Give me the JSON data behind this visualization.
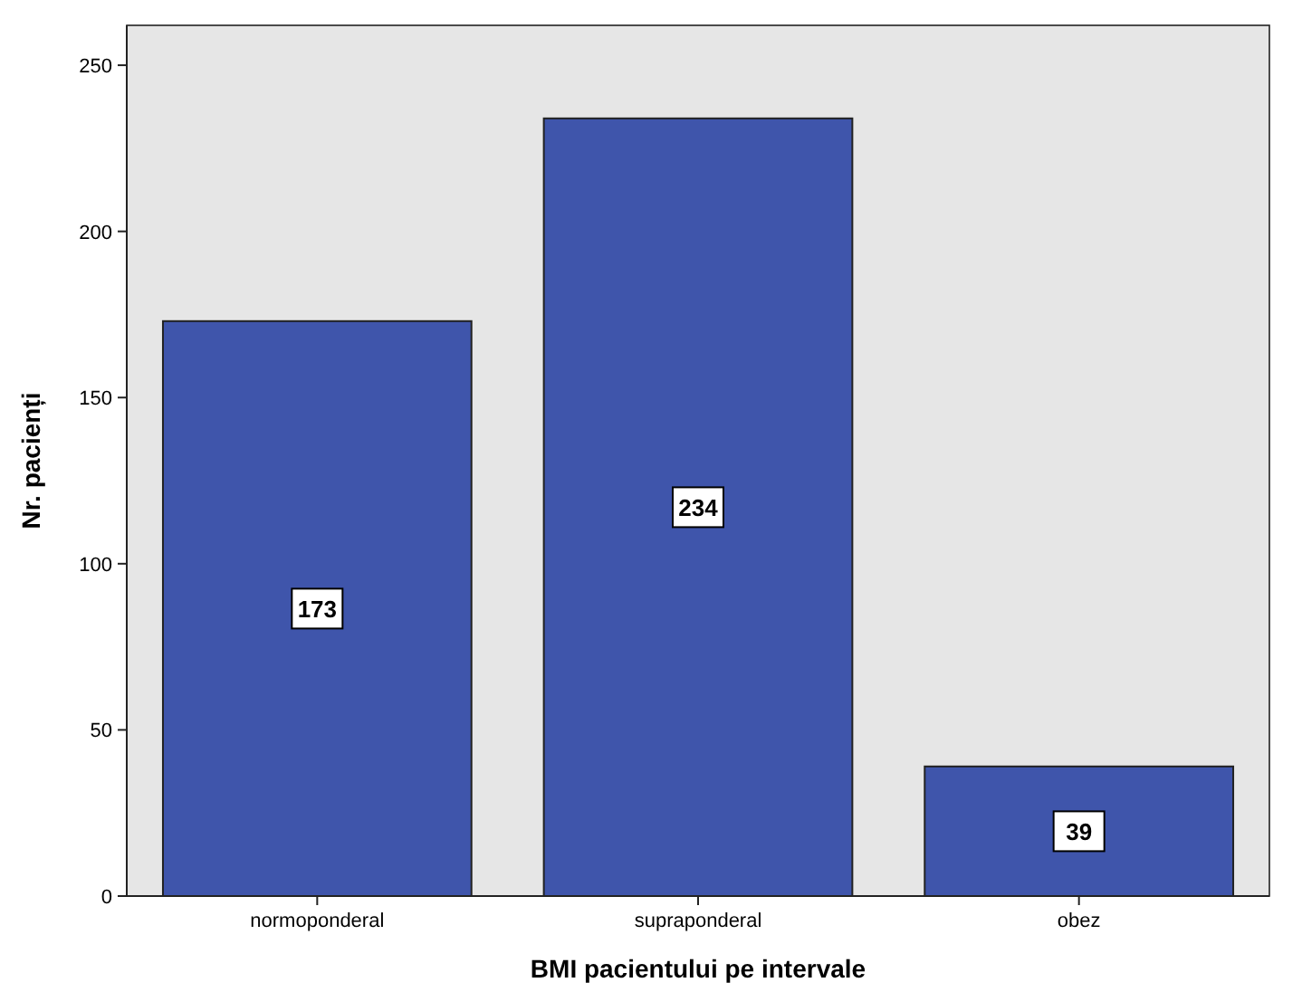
{
  "chart_data": {
    "type": "bar",
    "xlabel": "BMI pacientului pe intervale",
    "ylabel": "Nr. pacienți",
    "categories": [
      "normoponderal",
      "supraponderal",
      "obez"
    ],
    "values": [
      173,
      234,
      39
    ],
    "color": "#3f55ab",
    "ylim": [
      0,
      262
    ],
    "yticks": [
      0,
      50,
      100,
      150,
      200,
      250
    ],
    "grid": false,
    "data_labels": true
  }
}
